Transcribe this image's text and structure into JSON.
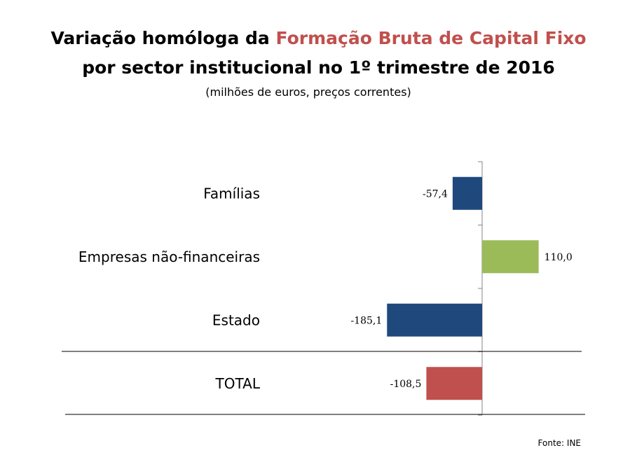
{
  "title": {
    "prefix": "Variação homóloga  da ",
    "highlight": "Formação Bruta de Capital Fixo",
    "line2": "por sector institucional no 1º trimestre de 2016",
    "subtitle": "(milhões de euros, preços correntes)"
  },
  "source": "Fonte: INE",
  "colors": {
    "negative_blue": "#1f497d",
    "positive_green": "#9bbb59",
    "total_red": "#c0504d",
    "title_highlight": "#c0504d"
  },
  "chart_data": {
    "type": "bar",
    "orientation": "horizontal",
    "categories": [
      "Famílias",
      "Empresas não-financeiras",
      "Estado",
      "TOTAL"
    ],
    "values": [
      -57.4,
      110.0,
      -185.1,
      -108.5
    ],
    "value_labels": [
      "-57,4",
      "110,0",
      "-185,1",
      "-108,5"
    ],
    "bar_colors": [
      "#1f497d",
      "#9bbb59",
      "#1f497d",
      "#c0504d"
    ],
    "title": "Variação homóloga  da Formação Bruta de Capital Fixo por sector institucional no 1º trimestre de 2016",
    "xlabel": "",
    "ylabel": "",
    "grid": false
  }
}
